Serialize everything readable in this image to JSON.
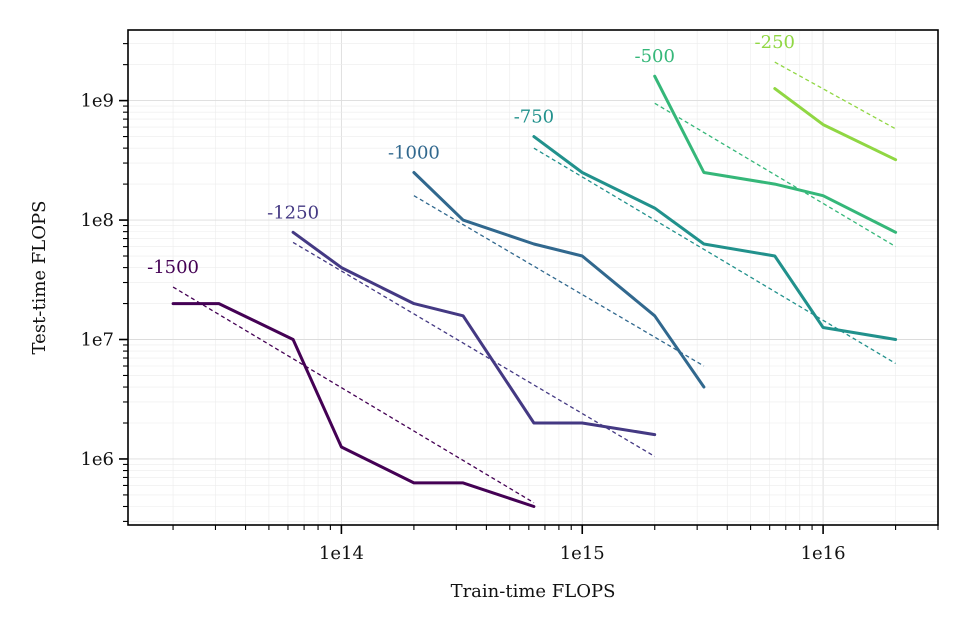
{
  "chart_data": {
    "type": "line",
    "xlabel": "Train-time FLOPS",
    "ylabel": "Test-time FLOPS",
    "x_scale": "log",
    "y_scale": "log",
    "xlim": [
      13000000000000.0,
      3e+16
    ],
    "ylim": [
      280000.0,
      3900000000.0
    ],
    "x_ticks": [
      {
        "value": 100000000000000.0,
        "label": "1e14"
      },
      {
        "value": 1000000000000000.0,
        "label": "1e15"
      },
      {
        "value": 1e+16,
        "label": "1e16"
      }
    ],
    "y_ticks": [
      {
        "value": 1000000.0,
        "label": "1e6"
      },
      {
        "value": 10000000.0,
        "label": "1e7"
      },
      {
        "value": 100000000.0,
        "label": "1e8"
      },
      {
        "value": 1000000000.0,
        "label": "1e9"
      }
    ],
    "grid": true,
    "legend": "none",
    "series": [
      {
        "name": "-1500",
        "color": "#440154",
        "x": [
          20000000000000.0,
          31000000000000.0,
          63000000000000.0,
          100000000000000.0,
          200000000000000.0,
          320000000000000.0,
          630000000000000.0
        ],
        "y": [
          20000000.0,
          20000000.0,
          10000000.0,
          1260000.0,
          630000.0,
          630000.0,
          400000.0
        ],
        "fit": {
          "x": [
            20000000000000.0,
            630000000000000.0
          ],
          "y": [
            27500000.0,
            430000.0
          ]
        }
      },
      {
        "name": "-1250",
        "color": "#443983",
        "x": [
          63000000000000.0,
          100000000000000.0,
          200000000000000.0,
          320000000000000.0,
          630000000000000.0,
          1000000000000000.0,
          2000000000000000.0
        ],
        "y": [
          79000000.0,
          40000000.0,
          20000000.0,
          15800000.0,
          2000000.0,
          2000000.0,
          1600000.0
        ],
        "fit": {
          "x": [
            63000000000000.0,
            2000000000000000.0
          ],
          "y": [
            65000000.0,
            1050000.0
          ]
        }
      },
      {
        "name": "-1000",
        "color": "#31688e",
        "x": [
          200000000000000.0,
          320000000000000.0,
          630000000000000.0,
          1000000000000000.0,
          2000000000000000.0,
          3200000000000000.0
        ],
        "y": [
          250000000.0,
          100000000.0,
          63000000.0,
          50000000.0,
          15800000.0,
          4000000.0
        ],
        "fit": {
          "x": [
            200000000000000.0,
            3200000000000000.0
          ],
          "y": [
            160000000.0,
            6000000.0
          ]
        }
      },
      {
        "name": "-750",
        "color": "#21918c",
        "x": [
          630000000000000.0,
          1000000000000000.0,
          2000000000000000.0,
          3200000000000000.0,
          6300000000000000.0,
          1e+16,
          2e+16
        ],
        "y": [
          500000000.0,
          250000000.0,
          126000000.0,
          63000000.0,
          50000000.0,
          12600000.0,
          10000000.0
        ],
        "fit": {
          "x": [
            630000000000000.0,
            2e+16
          ],
          "y": [
            400000000.0,
            6300000.0
          ]
        }
      },
      {
        "name": "-500",
        "color": "#35b779",
        "x": [
          2000000000000000.0,
          3200000000000000.0,
          6300000000000000.0,
          1e+16,
          2e+16
        ],
        "y": [
          1600000000.0,
          250000000.0,
          200000000.0,
          160000000.0,
          79000000.0
        ],
        "fit": {
          "x": [
            2000000000000000.0,
            2e+16
          ],
          "y": [
            950000000.0,
            60000000.0
          ]
        }
      },
      {
        "name": "-250",
        "color": "#90d743",
        "x": [
          6300000000000000.0,
          1e+16,
          2e+16
        ],
        "y": [
          1260000000.0,
          630000000.0,
          320000000.0
        ],
        "fit": {
          "x": [
            6300000000000000.0,
            2e+16
          ],
          "y": [
            2100000000.0,
            580000000.0
          ]
        }
      }
    ]
  }
}
